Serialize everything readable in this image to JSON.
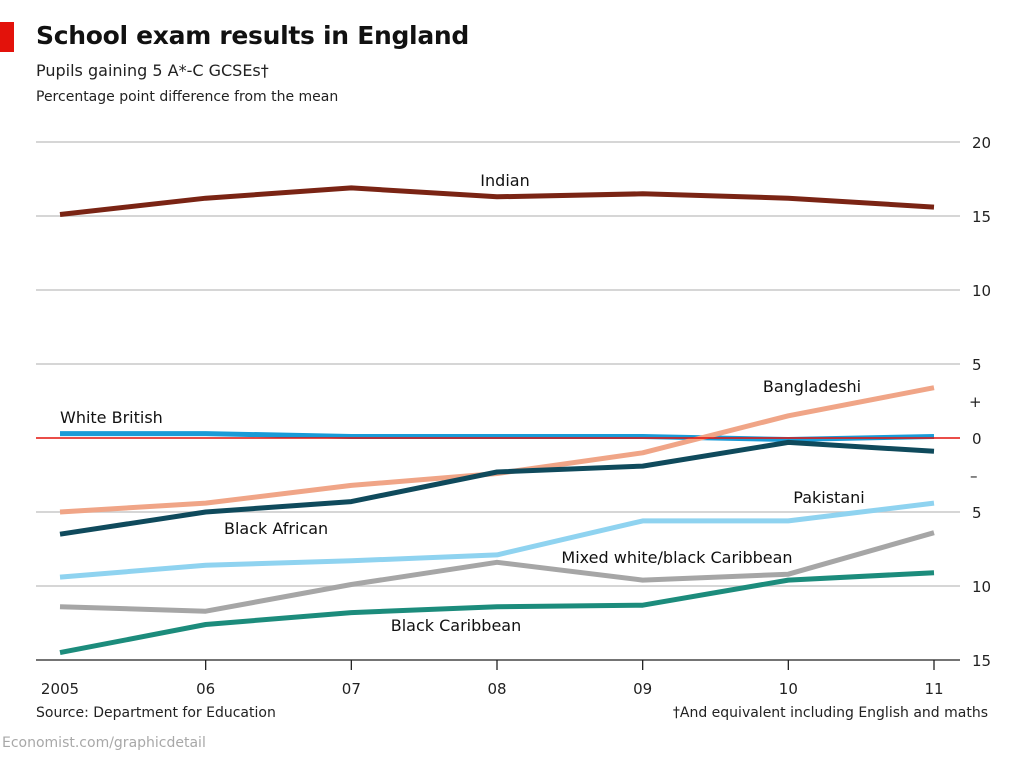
{
  "header": {
    "title": "School exam results in England",
    "subtitle": "Pupils gaining 5 A*-C GCSEs†",
    "note": "Percentage point difference from the mean"
  },
  "footer": {
    "source": "Source: Department for Education",
    "footnote": "†And equivalent including English and maths",
    "credit": "Economist.com/graphicdetail"
  },
  "chart_data": {
    "type": "line",
    "x": [
      "2005",
      "06",
      "07",
      "08",
      "09",
      "10",
      "11"
    ],
    "y_ticks": [
      {
        "value": 20,
        "label": "20"
      },
      {
        "value": 15,
        "label": "15"
      },
      {
        "value": 10,
        "label": "10"
      },
      {
        "value": 5,
        "label": "5"
      },
      {
        "value": 0,
        "label": "0"
      },
      {
        "value": -5,
        "label": "5"
      },
      {
        "value": -10,
        "label": "10"
      },
      {
        "value": -15,
        "label": "15"
      }
    ],
    "sign_labels": {
      "plus": "+",
      "minus": "–"
    },
    "ylim": [
      -15,
      20
    ],
    "zero_line_color": "#e3120b",
    "grid": true,
    "series": [
      {
        "name": "Indian",
        "color": "#7a2414",
        "values": [
          15.1,
          16.2,
          16.9,
          16.3,
          16.5,
          16.2,
          15.6
        ]
      },
      {
        "name": "White British",
        "color": "#1a9bd7",
        "values": [
          0.3,
          0.3,
          0.1,
          0.1,
          0.1,
          -0.1,
          0.1
        ]
      },
      {
        "name": "Bangladeshi",
        "color": "#f0a587",
        "values": [
          -5.0,
          -4.4,
          -3.2,
          -2.4,
          -1.0,
          1.5,
          3.4
        ]
      },
      {
        "name": "Black African",
        "color": "#0f4a5c",
        "values": [
          -6.5,
          -5.0,
          -4.3,
          -2.3,
          -1.9,
          -0.3,
          -0.9
        ]
      },
      {
        "name": "Pakistani",
        "color": "#8fd3f0",
        "values": [
          -9.4,
          -8.6,
          -8.3,
          -7.9,
          -5.6,
          -5.6,
          -4.4
        ]
      },
      {
        "name": "Mixed white/black Caribbean",
        "color": "#a6a6a6",
        "values": [
          -11.4,
          -11.7,
          -9.9,
          -8.4,
          -9.6,
          -9.2,
          -6.4
        ]
      },
      {
        "name": "Black Caribbean",
        "color": "#1c8c7c",
        "values": [
          -14.5,
          -12.6,
          -11.8,
          -11.4,
          -11.3,
          -9.6,
          -9.1
        ]
      }
    ]
  }
}
